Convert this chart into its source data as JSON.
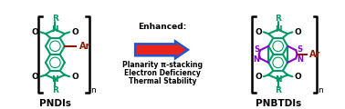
{
  "background_color": "#ffffff",
  "left_label": "PNDIs",
  "right_label": "PNBTDIs",
  "arrow_label": "Enhanced:",
  "bullet1": "Planarity π-stacking",
  "bullet2": "Electron Deficiency",
  "bullet3": "Thermal Stability",
  "arrow_color": "#e8251a",
  "arrow_outline": "#2255cc",
  "teal": "#009966",
  "purple": "#8800cc",
  "dark_red": "#8b1a00",
  "black": "#000000",
  "figsize": [
    3.78,
    1.2
  ],
  "dpi": 100
}
